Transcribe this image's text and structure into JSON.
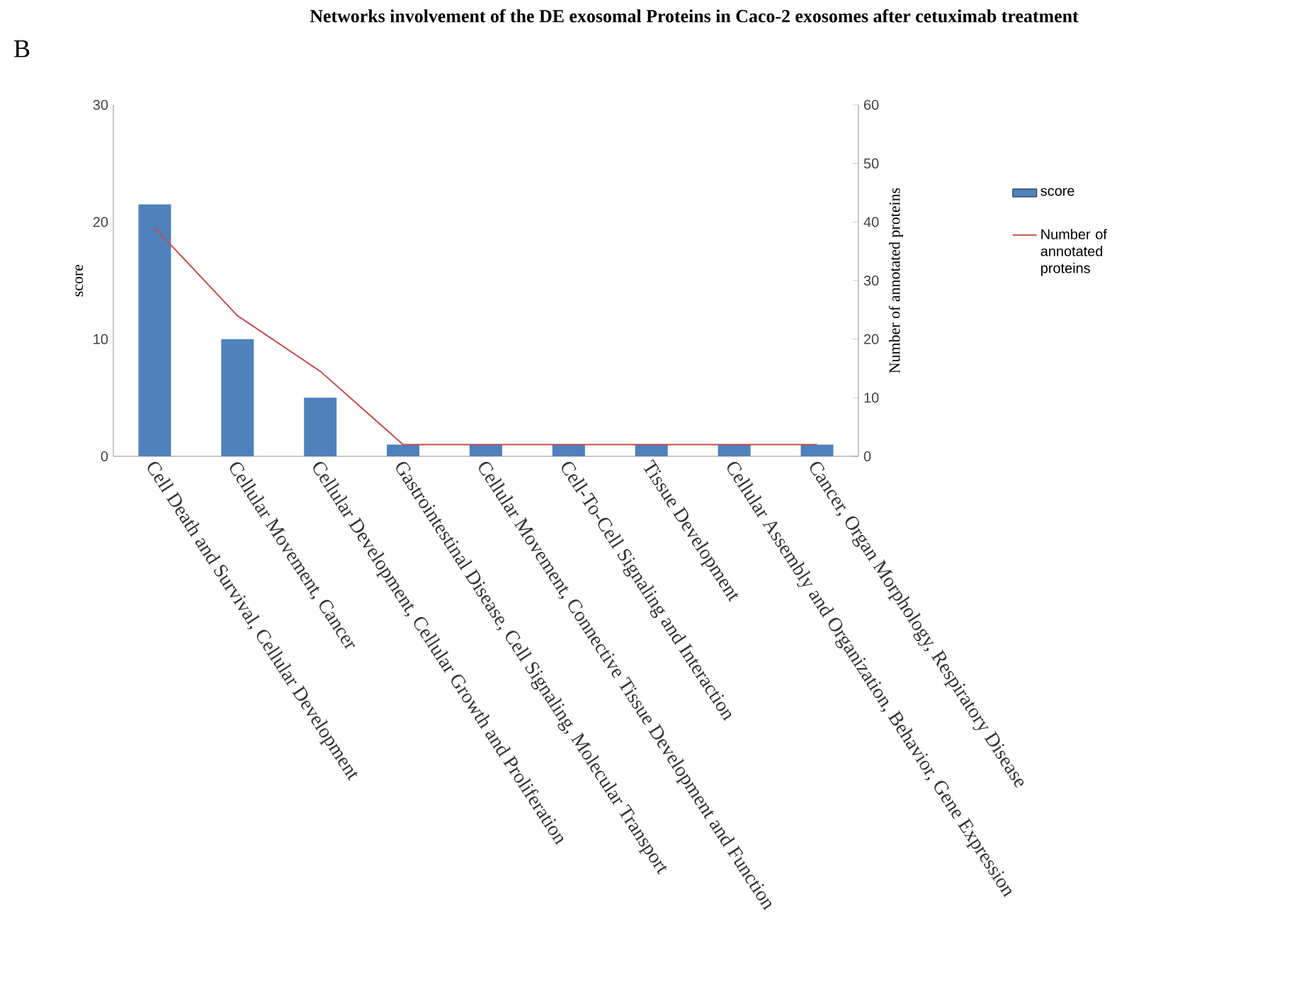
{
  "chart_data": {
    "type": "bar",
    "title": "Networks involvement of the DE exosomal Proteins in Caco-2 exosomes after cetuximab treatment",
    "annotations": [
      "B"
    ],
    "categories": [
      "Cell Death and Survival, Cellular Development",
      "Cellular Movement, Cancer",
      "Cellular Development, Cellular Growth and Proliferation",
      "Gastrointestinal Disease, Cell Signaling, Molecular Transport",
      "Cellular Movement, Connective Tissue Development and Function",
      "Cell-To-Cell Signaling and Interaction",
      "Tissue Development",
      "Cellular Assembly and Organization, Behavior, Gene Expression",
      "Cancer, Organ Morphology, Respiratory Disease"
    ],
    "series": [
      {
        "name": "score",
        "color": "#4f81bd",
        "values": [
          21.5,
          10,
          5,
          1,
          1,
          1,
          1,
          1,
          1
        ]
      },
      {
        "name": "Number of annotated proteins",
        "type": "line",
        "axis": "y2",
        "color": "#c0504d",
        "values": [
          39,
          24,
          14.5,
          2,
          2,
          2,
          2,
          2,
          2
        ]
      }
    ],
    "ylabel": "score",
    "y2label": "Number of annotated proteins",
    "ylim": [
      0,
      30
    ],
    "yticks": [
      0,
      10,
      20,
      30
    ],
    "y2lim": [
      0,
      60
    ],
    "y2ticks": [
      0,
      10,
      20,
      30,
      40,
      50,
      60
    ],
    "legend": "right"
  }
}
